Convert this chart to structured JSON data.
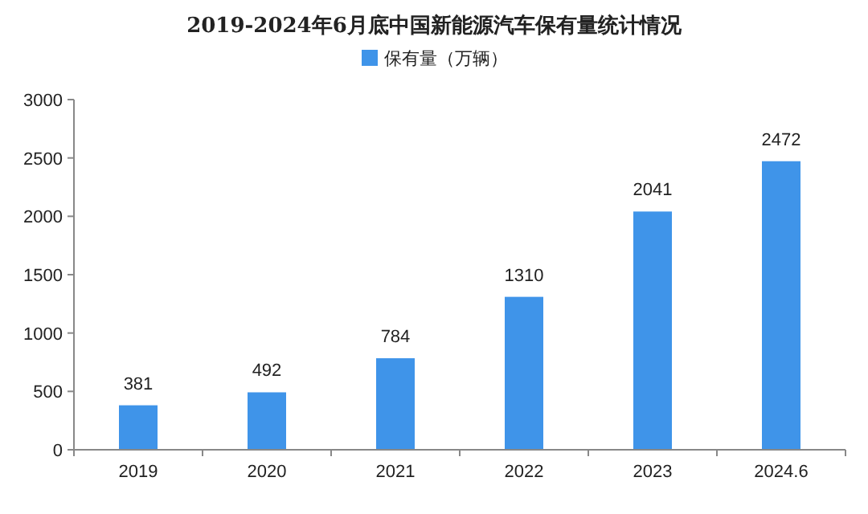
{
  "chart_data": {
    "type": "bar",
    "title": "2019-2024年6月底中国新能源汽车保有量统计情况",
    "categories": [
      "2019",
      "2020",
      "2021",
      "2022",
      "2023",
      "2024.6"
    ],
    "series": [
      {
        "name": "保有量（万辆）",
        "color": "#3f94e9",
        "values": [
          381,
          492,
          784,
          1310,
          2041,
          2472
        ]
      }
    ],
    "ylim": [
      0,
      3000
    ],
    "yticks": [
      0,
      500,
      1000,
      1500,
      2000,
      2500,
      3000
    ],
    "data_labels": true,
    "legend": "top"
  }
}
